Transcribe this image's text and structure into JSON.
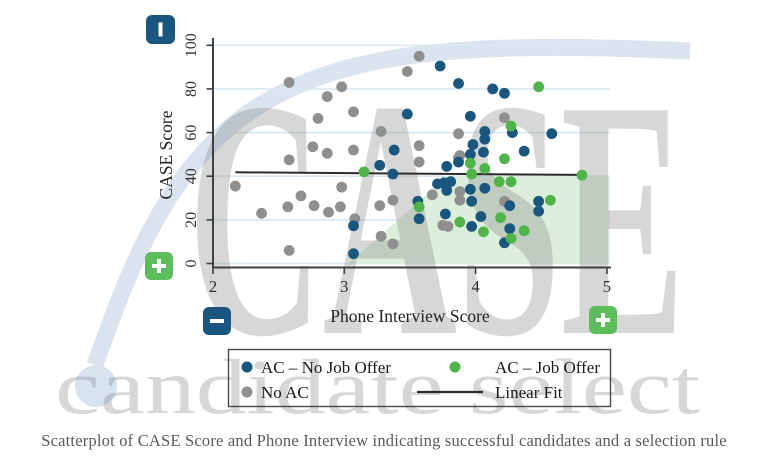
{
  "watermark": {
    "brand": "CASE",
    "tagline": "candidate select"
  },
  "caption": "Scatterplot of CASE Score and Phone Interview indicating successful candidates and a selection rule",
  "ui": {
    "colors": {
      "navy": "#1a567d",
      "green_dot": "#50b44b",
      "green_icon": "#5cbd5c",
      "gray": "#8f8f8f",
      "gridline": "#d9e8f2",
      "axis": "#3f3f3f",
      "fit_line": "#2b2b2b",
      "region_fill": "#dcefdc",
      "swoosh": "#dbe4ee",
      "legend_border": "#4a4a4a"
    },
    "icons": {
      "y_axis_top": {
        "glyph": "minus",
        "meaning": "negative-direction"
      },
      "y_axis_bottom": {
        "glyph": "plus",
        "meaning": "positive-direction"
      },
      "x_axis_left": {
        "glyph": "minus",
        "meaning": "negative-direction"
      },
      "x_axis_right": {
        "glyph": "plus",
        "meaning": "positive-direction"
      }
    }
  },
  "legend": {
    "items": [
      {
        "label": "AC – No Job Offer",
        "symbol": "dot",
        "color": "#1a567d"
      },
      {
        "label": "AC – Job Offer",
        "symbol": "dot",
        "color": "#50b44b"
      },
      {
        "label": "No AC",
        "symbol": "dot",
        "color": "#8f8f8f"
      },
      {
        "label": "Linear Fit",
        "symbol": "line",
        "color": "#2b2b2b"
      }
    ]
  },
  "chart_data": {
    "type": "scatter",
    "xlabel": "Phone Interview Score",
    "ylabel": "CASE Score",
    "xlim": [
      2,
      5
    ],
    "ylim": [
      0,
      100
    ],
    "x_ticks": [
      2,
      3,
      4,
      5
    ],
    "y_ticks": [
      0,
      20,
      40,
      60,
      80,
      100
    ],
    "grid": "horizontal",
    "legend_position": "bottom",
    "series": [
      {
        "name": "No AC",
        "key": "no_ac",
        "color": "#8f8f8f",
        "points": [
          [
            2.17,
            35.5
          ],
          [
            2.37,
            23
          ],
          [
            2.57,
            26
          ],
          [
            2.58,
            47.5
          ],
          [
            2.58,
            83
          ],
          [
            2.58,
            6
          ],
          [
            2.67,
            31
          ],
          [
            2.76,
            53.5
          ],
          [
            2.77,
            26.5
          ],
          [
            2.8,
            66.5
          ],
          [
            2.87,
            76.5
          ],
          [
            2.87,
            50.5
          ],
          [
            2.88,
            23.5
          ],
          [
            2.97,
            26
          ],
          [
            2.98,
            81
          ],
          [
            2.98,
            35
          ],
          [
            3.07,
            69.5
          ],
          [
            3.07,
            52
          ],
          [
            3.08,
            20.5
          ],
          [
            3.27,
            26.5
          ],
          [
            3.28,
            60.5
          ],
          [
            3.28,
            12.5
          ],
          [
            3.37,
            29
          ],
          [
            3.37,
            9
          ],
          [
            3.48,
            88
          ],
          [
            3.57,
            95
          ],
          [
            3.57,
            54
          ],
          [
            3.57,
            46.5
          ],
          [
            3.67,
            31.5
          ],
          [
            3.75,
            17.5
          ],
          [
            3.79,
            17
          ],
          [
            3.87,
            59.5
          ],
          [
            3.87,
            48.5
          ],
          [
            3.88,
            49.5
          ],
          [
            3.88,
            33
          ],
          [
            3.88,
            29
          ],
          [
            4.22,
            66.8
          ],
          [
            4.22,
            28.5
          ]
        ]
      },
      {
        "name": "AC – No Job Offer",
        "key": "ac_no_offer",
        "color": "#1a567d",
        "points": [
          [
            3.07,
            17.3
          ],
          [
            3.07,
            4.5
          ],
          [
            3.27,
            45
          ],
          [
            3.37,
            41
          ],
          [
            3.38,
            52
          ],
          [
            3.48,
            68.5
          ],
          [
            3.56,
            28.5
          ],
          [
            3.57,
            20.5
          ],
          [
            3.71,
            36.5
          ],
          [
            3.73,
            90.5
          ],
          [
            3.76,
            37
          ],
          [
            3.77,
            22.7
          ],
          [
            3.78,
            44.5
          ],
          [
            3.78,
            33.5
          ],
          [
            3.81,
            37.5
          ],
          [
            3.87,
            82.5
          ],
          [
            3.87,
            46.5
          ],
          [
            3.96,
            67.5
          ],
          [
            3.96,
            50
          ],
          [
            3.96,
            34
          ],
          [
            3.97,
            28.5
          ],
          [
            3.97,
            17
          ],
          [
            3.98,
            54.5
          ],
          [
            4.04,
            21.5
          ],
          [
            4.06,
            51
          ],
          [
            4.07,
            60.5
          ],
          [
            4.07,
            57
          ],
          [
            4.07,
            34.5
          ],
          [
            4.13,
            80
          ],
          [
            4.22,
            78
          ],
          [
            4.22,
            9.5
          ],
          [
            4.26,
            26.5
          ],
          [
            4.26,
            16
          ],
          [
            4.28,
            60
          ],
          [
            4.37,
            51.5
          ],
          [
            4.48,
            28.5
          ],
          [
            4.48,
            24
          ],
          [
            4.58,
            59.5
          ]
        ]
      },
      {
        "name": "AC – Job Offer",
        "key": "ac_offer",
        "color": "#50b44b",
        "points": [
          [
            3.15,
            42
          ],
          [
            3.57,
            26
          ],
          [
            3.88,
            19
          ],
          [
            3.96,
            46
          ],
          [
            3.97,
            41
          ],
          [
            4.06,
            14.5
          ],
          [
            4.07,
            43.5
          ],
          [
            4.18,
            37.5
          ],
          [
            4.19,
            21
          ],
          [
            4.22,
            48
          ],
          [
            4.27,
            63
          ],
          [
            4.27,
            37.5
          ],
          [
            4.27,
            11.5
          ],
          [
            4.37,
            15
          ],
          [
            4.48,
            81
          ],
          [
            4.57,
            29
          ],
          [
            4.81,
            40.5
          ]
        ]
      },
      {
        "name": "Linear Fit",
        "key": "linear_fit",
        "type": "line",
        "color": "#2b2b2b",
        "points": [
          [
            2.17,
            41.8
          ],
          [
            4.81,
            40.6
          ]
        ]
      }
    ],
    "selection_region": {
      "points": [
        [
          3.03,
          0
        ],
        [
          3.79,
          40
        ],
        [
          5.02,
          40
        ],
        [
          5.02,
          0
        ]
      ],
      "fill": "#dcefdc"
    }
  }
}
